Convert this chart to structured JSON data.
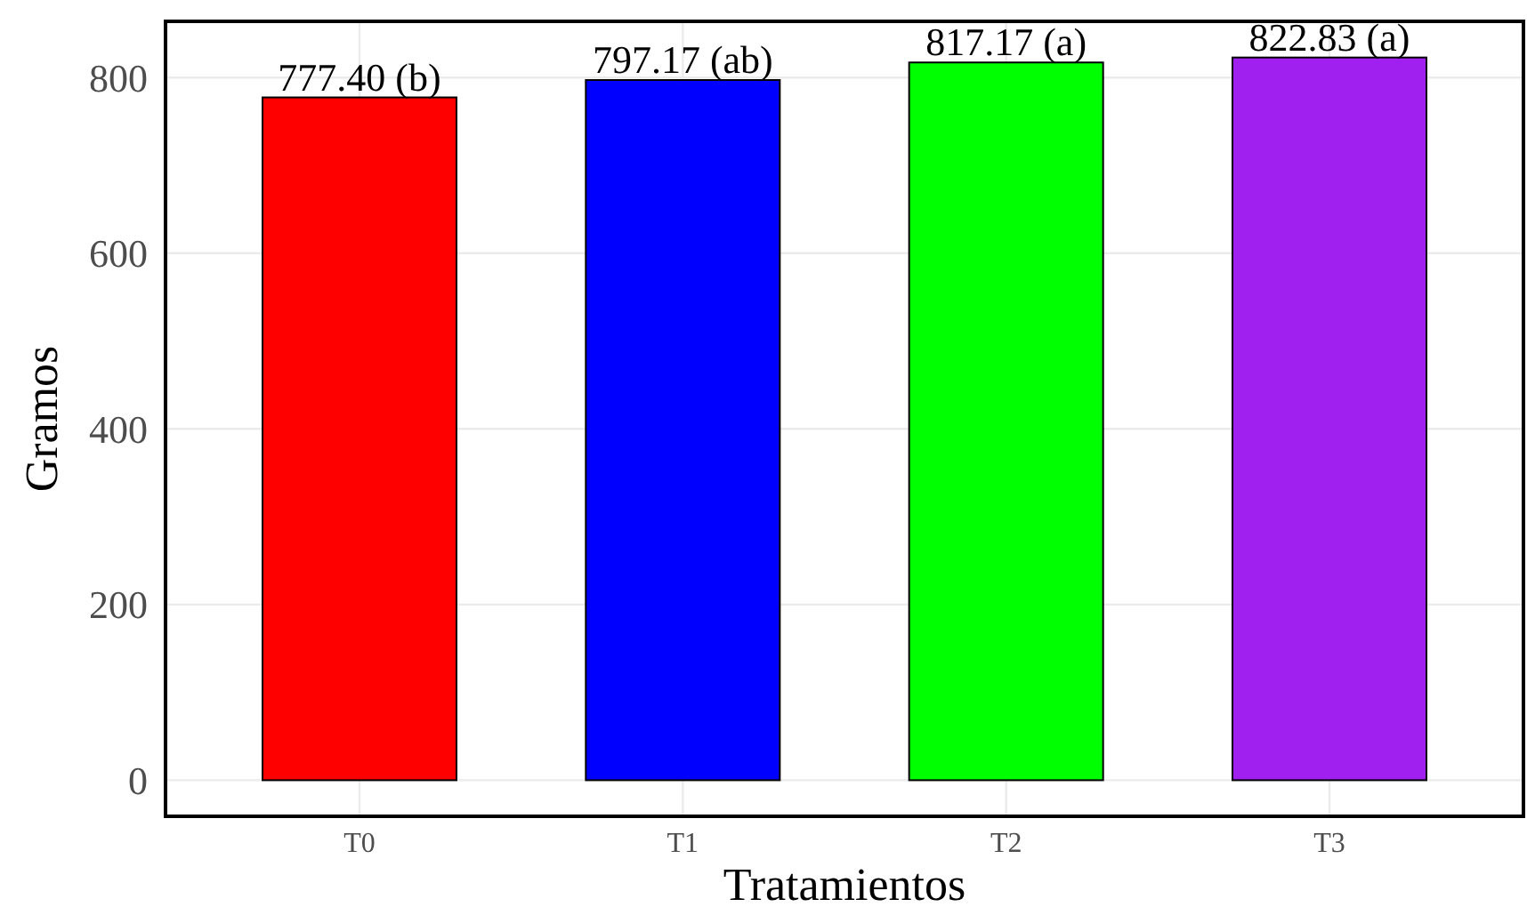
{
  "chart_data": {
    "type": "bar",
    "xlabel": "Tratamientos",
    "ylabel": "Gramos",
    "categories": [
      "T0",
      "T1",
      "T2",
      "T3"
    ],
    "values": [
      777.4,
      797.17,
      817.17,
      822.83
    ],
    "colors": [
      "#ff0000",
      "#0000ff",
      "#00ff00",
      "#a020f0"
    ],
    "value_labels": [
      "777.40 (b)",
      "797.17 (ab)",
      "817.17 (a)",
      "822.83 (a)"
    ],
    "ylim": [
      -41.1,
      864
    ],
    "yticks": [
      0,
      200,
      400,
      600,
      800
    ],
    "grid": true
  }
}
